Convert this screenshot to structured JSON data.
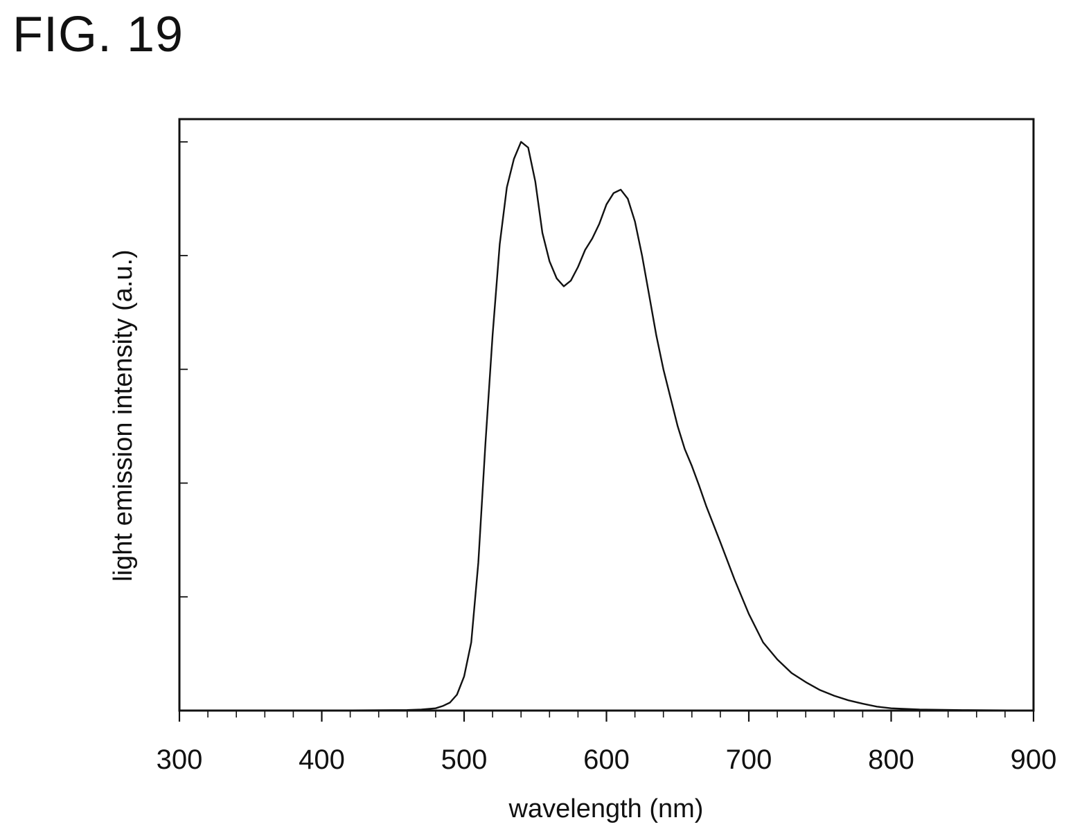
{
  "figure_label": "FIG. 19",
  "chart_data": {
    "type": "line",
    "title": "",
    "xlabel": "wavelength (nm)",
    "ylabel": "light emission intensity (a.u.)",
    "xlim": [
      300,
      900
    ],
    "ylim": [
      0,
      5.2
    ],
    "xticks_major": [
      300,
      400,
      500,
      600,
      700,
      800,
      900
    ],
    "xtick_labels": [
      "300",
      "400",
      "500",
      "600",
      "700",
      "800",
      "900"
    ],
    "xticks_minor_step": 20,
    "yticks": [
      0,
      1,
      2,
      3,
      4,
      5
    ],
    "ytick_labels_shown": false,
    "grid": false,
    "line_color": "#111111",
    "series": [
      {
        "x": [
          300,
          400,
          460,
          470,
          480,
          485,
          490,
          495,
          500,
          505,
          510,
          515,
          520,
          525,
          530,
          535,
          540,
          545,
          550,
          555,
          560,
          565,
          570,
          575,
          580,
          585,
          590,
          595,
          600,
          605,
          610,
          615,
          620,
          625,
          630,
          635,
          640,
          645,
          650,
          655,
          660,
          665,
          670,
          680,
          690,
          700,
          710,
          720,
          730,
          740,
          750,
          760,
          770,
          780,
          790,
          800,
          820,
          850,
          900
        ],
        "y": [
          0,
          0,
          0.005,
          0.01,
          0.02,
          0.04,
          0.07,
          0.14,
          0.3,
          0.6,
          1.3,
          2.35,
          3.3,
          4.1,
          4.6,
          4.85,
          5.0,
          4.95,
          4.65,
          4.2,
          3.95,
          3.8,
          3.73,
          3.78,
          3.9,
          4.05,
          4.15,
          4.28,
          4.45,
          4.55,
          4.58,
          4.5,
          4.3,
          4.0,
          3.65,
          3.3,
          3.0,
          2.75,
          2.5,
          2.3,
          2.15,
          1.98,
          1.8,
          1.48,
          1.15,
          0.85,
          0.6,
          0.45,
          0.33,
          0.25,
          0.18,
          0.13,
          0.09,
          0.06,
          0.035,
          0.02,
          0.01,
          0.004,
          0
        ]
      }
    ]
  }
}
